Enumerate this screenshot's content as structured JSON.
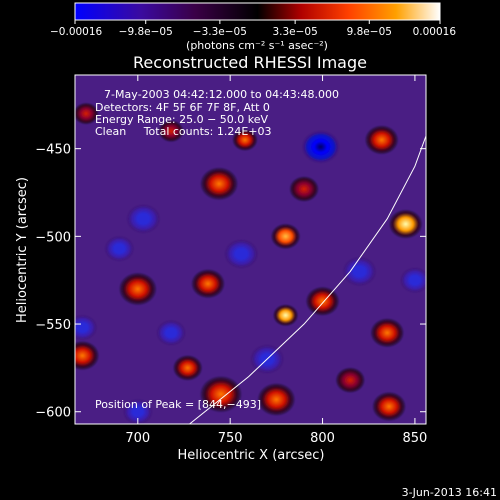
{
  "chart_data": {
    "type": "heatmap",
    "title": "Reconstructed RHESSI Image",
    "xlabel": "Heliocentric X (arcsec)",
    "ylabel": "Heliocentric Y (arcsec)",
    "xlim": [
      666,
      856
    ],
    "ylim": [
      -607,
      -408
    ],
    "x_ticks": [
      700,
      750,
      800,
      850
    ],
    "x_tick_labels": [
      "700",
      "750",
      "800",
      "850"
    ],
    "y_ticks": [
      -450,
      -500,
      -550,
      -600
    ],
    "y_tick_labels": [
      "−450",
      "−500",
      "−550",
      "−600"
    ],
    "colorbar": {
      "range": [
        -0.00016,
        0.00016
      ],
      "tick_values": [
        -0.00016,
        -9.8e-05,
        -3.3e-05,
        3.3e-05,
        9.8e-05,
        0.00016
      ],
      "tick_labels": [
        "−0.00016",
        "−9.8e−05",
        "−3.3e−05",
        "3.3e−05",
        "9.8e−05",
        "0.00016"
      ],
      "units_label": "(photons cm⁻² s⁻¹ asec⁻²)",
      "colormap": [
        "#0000ff",
        "#4b0082",
        "#000000",
        "#b00000",
        "#ff4500",
        "#ffa500",
        "#ffff80",
        "#ffffff"
      ]
    },
    "info_lines": [
      "7‑May‑2003 04:42:12.000 to 04:43:48.000",
      "Detectors: 4F 5F 6F 7F 8F, Att 0",
      "Energy Range: 25.0 − 50.0 keV",
      "Clean     Total counts: 1.24E+03"
    ],
    "peak_label": "Position of Peak = [844,−493]",
    "peak_position": [
      844,
      -493
    ],
    "limb_curve": [
      [
        728,
        -607
      ],
      [
        760,
        -580
      ],
      [
        790,
        -550
      ],
      [
        815,
        -520
      ],
      [
        835,
        -490
      ],
      [
        850,
        -460
      ],
      [
        858,
        -437
      ]
    ],
    "blobs": [
      {
        "x": 799,
        "y": -449,
        "v": -1.0,
        "s": 9
      },
      {
        "x": 758,
        "y": -445,
        "v": 0.6,
        "s": 6
      },
      {
        "x": 744,
        "y": -470,
        "v": 0.55,
        "s": 9
      },
      {
        "x": 845,
        "y": -493,
        "v": 1.0,
        "s": 8
      },
      {
        "x": 832,
        "y": -445,
        "v": 0.55,
        "s": 8
      },
      {
        "x": 780,
        "y": -500,
        "v": 0.75,
        "s": 7
      },
      {
        "x": 780,
        "y": -545,
        "v": 1.0,
        "s": 6
      },
      {
        "x": 800,
        "y": -537,
        "v": 0.5,
        "s": 8
      },
      {
        "x": 700,
        "y": -530,
        "v": 0.55,
        "s": 9
      },
      {
        "x": 738,
        "y": -527,
        "v": 0.5,
        "s": 8
      },
      {
        "x": 745,
        "y": -590,
        "v": 0.6,
        "s": 10
      },
      {
        "x": 775,
        "y": -593,
        "v": 0.45,
        "s": 9
      },
      {
        "x": 670,
        "y": -568,
        "v": 0.55,
        "s": 8
      },
      {
        "x": 835,
        "y": -555,
        "v": 0.55,
        "s": 8
      },
      {
        "x": 836,
        "y": -597,
        "v": 0.55,
        "s": 8
      },
      {
        "x": 727,
        "y": -575,
        "v": 0.45,
        "s": 7
      },
      {
        "x": 815,
        "y": -582,
        "v": 0.35,
        "s": 7
      },
      {
        "x": 790,
        "y": -473,
        "v": 0.35,
        "s": 7
      },
      {
        "x": 672,
        "y": -430,
        "v": 0.3,
        "s": 6
      },
      {
        "x": 718,
        "y": -440,
        "v": 0.25,
        "s": 6
      },
      {
        "x": 690,
        "y": -507,
        "v": -0.6,
        "s": 7
      },
      {
        "x": 670,
        "y": -552,
        "v": -0.6,
        "s": 7
      },
      {
        "x": 703,
        "y": -490,
        "v": -0.45,
        "s": 8
      },
      {
        "x": 756,
        "y": -510,
        "v": -0.4,
        "s": 8
      },
      {
        "x": 820,
        "y": -520,
        "v": -0.45,
        "s": 8
      },
      {
        "x": 770,
        "y": -570,
        "v": -0.45,
        "s": 8
      },
      {
        "x": 718,
        "y": -555,
        "v": -0.4,
        "s": 7
      },
      {
        "x": 850,
        "y": -525,
        "v": -0.35,
        "s": 7
      },
      {
        "x": 700,
        "y": -600,
        "v": -0.3,
        "s": 7
      }
    ]
  },
  "footer": {
    "timestamp": "3‑Jun‑2013 16:41"
  }
}
